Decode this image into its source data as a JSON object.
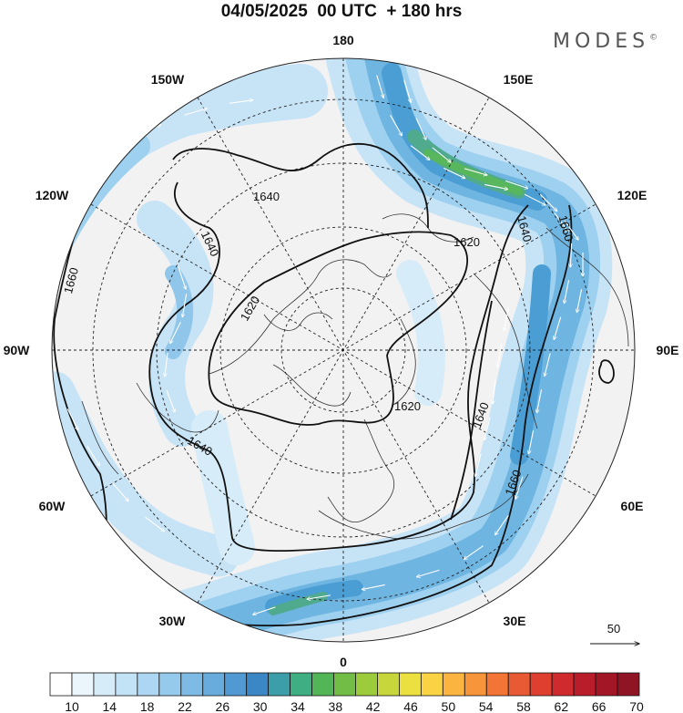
{
  "title": "04/05/2025  00 UTC  + 180 hrs",
  "logo": "MODES",
  "logo_mark": "©",
  "longitude_labels": {
    "top": "180",
    "bottom": "0",
    "left": "90W",
    "right": "90E",
    "upper_left_1": "150W",
    "upper_left_2": "120W",
    "lower_left_1": "60W",
    "lower_left_2": "30W",
    "upper_right_1": "150E",
    "upper_right_2": "120E",
    "lower_right_1": "60E",
    "lower_right_2": "30E"
  },
  "contour_labels": [
    "1640",
    "1640",
    "1620",
    "1660",
    "1620",
    "1640",
    "1660",
    "1620",
    "1640",
    "1660",
    "1640"
  ],
  "reference_vector_label": "50",
  "colorbar": {
    "labels": [
      "10",
      "14",
      "18",
      "22",
      "26",
      "30",
      "34",
      "38",
      "42",
      "46",
      "50",
      "54",
      "58",
      "62",
      "66",
      "70"
    ],
    "colors": [
      "#ffffff",
      "#eaf5fc",
      "#d6ecf8",
      "#c2e2f5",
      "#acd6f1",
      "#95caec",
      "#7dbbe5",
      "#67acdd",
      "#5099d2",
      "#3b87c6",
      "#3b9ea8",
      "#3fae82",
      "#52b556",
      "#72bd45",
      "#9ccb3c",
      "#c7d63b",
      "#ebe03f",
      "#fad345",
      "#fbb440",
      "#f7953b",
      "#f27536",
      "#e85a33",
      "#de3f2f",
      "#cf2a2d",
      "#b91d29",
      "#a31626",
      "#8f1424"
    ]
  }
}
